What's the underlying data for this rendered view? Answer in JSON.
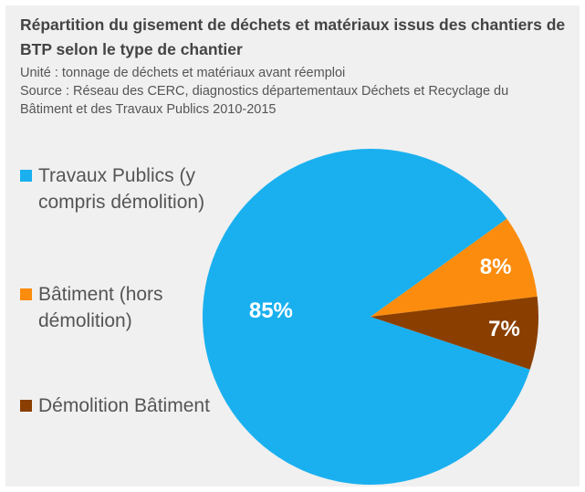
{
  "chart_data": {
    "type": "pie",
    "title": "Répartition du gisement de déchets et matériaux issus des chantiers de BTP selon le type de chantier",
    "subtitle": [
      "Unité : tonnage de déchets et matériaux avant réemploi",
      "Source : Réseau des CERC, diagnostics départementaux Déchets et Recyclage du Bâtiment et des Travaux Publics 2010-2015"
    ],
    "categories": [
      "Travaux Publics (y compris démolition)",
      "Bâtiment (hors démolition)",
      "Démolition Bâtiment"
    ],
    "values": [
      85,
      8,
      7
    ],
    "value_labels": [
      "85%",
      "8%",
      "7%"
    ],
    "colors": [
      "#1ab0ef",
      "#fb8c0e",
      "#8a3f00"
    ],
    "legend": "left"
  }
}
